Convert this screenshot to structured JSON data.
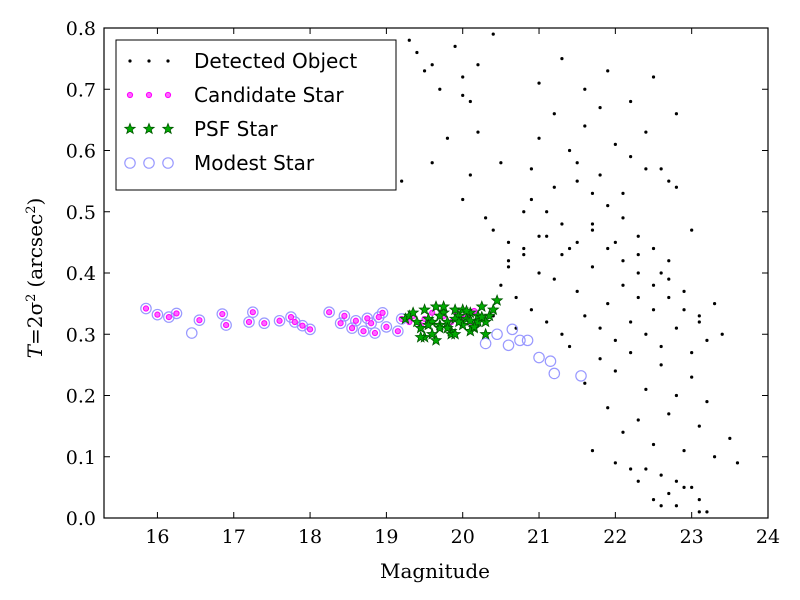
{
  "chart_data": {
    "type": "scatter",
    "xlabel": "Magnitude",
    "ylabel_prefix": "T",
    "ylabel_math": "=2σ",
    "ylabel_unit": "(arcsec",
    "ylabel_close": ")",
    "ylabel_sup": "2",
    "xlim": [
      15.3,
      24.0
    ],
    "ylim": [
      0.0,
      0.8
    ],
    "xticks": [
      "16",
      "17",
      "18",
      "19",
      "20",
      "21",
      "22",
      "23",
      "24"
    ],
    "yticks": [
      "0.0",
      "0.1",
      "0.2",
      "0.3",
      "0.4",
      "0.5",
      "0.6",
      "0.7",
      "0.8"
    ],
    "legend_position": "top-left",
    "grid": false,
    "colors": {
      "detected": "#000000",
      "candidate_edge": "#ff00ff",
      "candidate_fill": "#ff66ff",
      "psf_fill": "#00aa00",
      "psf_edge": "#005500",
      "modest_edge": "#9999ff"
    },
    "series": [
      {
        "name": "Detected Object",
        "marker": "dot",
        "x": [
          19.3,
          19.4,
          19.5,
          19.7,
          19.9,
          20.0,
          20.1,
          20.2,
          20.4,
          19.2,
          19.6,
          20.0,
          20.3,
          20.6,
          20.8,
          21.0,
          21.2,
          21.4,
          21.6,
          21.8,
          22.0,
          22.2,
          22.4,
          22.6,
          22.8,
          19.8,
          20.1,
          20.4,
          20.6,
          20.9,
          21.1,
          21.3,
          21.5,
          21.7,
          21.9,
          22.1,
          22.3,
          22.5,
          22.7,
          23.0,
          20.5,
          20.7,
          21.0,
          21.2,
          21.5,
          21.7,
          21.9,
          22.1,
          22.3,
          22.5,
          22.7,
          22.9,
          23.1,
          23.3,
          20.4,
          20.7,
          20.9,
          21.1,
          21.3,
          21.6,
          21.8,
          22.0,
          22.2,
          22.4,
          22.6,
          22.8,
          23.0,
          23.2,
          20.6,
          20.8,
          21.0,
          21.3,
          21.5,
          21.7,
          21.9,
          22.1,
          22.3,
          22.5,
          22.7,
          22.9,
          23.1,
          23.4,
          21.4,
          21.8,
          22.2,
          22.6,
          23.0,
          21.6,
          22.0,
          22.4,
          22.8,
          23.2,
          21.9,
          22.3,
          22.7,
          23.1,
          23.5,
          22.1,
          22.5,
          22.9,
          23.3,
          23.6,
          21.7,
          22.2,
          22.6,
          22.8,
          23.0,
          22.0,
          22.4,
          22.7,
          23.1,
          22.3,
          22.6,
          22.9,
          23.2,
          22.5,
          22.8,
          23.1,
          19.6,
          20.0,
          20.2,
          20.5,
          21.0,
          21.3,
          21.6,
          21.9,
          22.2,
          22.5,
          22.8,
          20.9,
          21.2,
          21.5,
          21.8,
          22.1,
          22.4,
          22.7,
          20.8,
          21.1,
          21.4,
          21.7,
          22.0,
          22.3,
          22.6
        ],
        "y": [
          0.78,
          0.76,
          0.73,
          0.7,
          0.77,
          0.72,
          0.68,
          0.74,
          0.79,
          0.55,
          0.58,
          0.52,
          0.49,
          0.45,
          0.43,
          0.62,
          0.66,
          0.6,
          0.64,
          0.67,
          0.61,
          0.59,
          0.63,
          0.57,
          0.54,
          0.62,
          0.56,
          0.47,
          0.41,
          0.52,
          0.5,
          0.48,
          0.55,
          0.53,
          0.51,
          0.49,
          0.46,
          0.44,
          0.42,
          0.47,
          0.38,
          0.36,
          0.4,
          0.39,
          0.37,
          0.41,
          0.35,
          0.38,
          0.36,
          0.34,
          0.39,
          0.37,
          0.33,
          0.35,
          0.33,
          0.31,
          0.34,
          0.32,
          0.3,
          0.33,
          0.31,
          0.29,
          0.32,
          0.3,
          0.28,
          0.31,
          0.27,
          0.29,
          0.42,
          0.44,
          0.46,
          0.43,
          0.45,
          0.47,
          0.44,
          0.42,
          0.4,
          0.38,
          0.36,
          0.34,
          0.32,
          0.3,
          0.28,
          0.26,
          0.27,
          0.25,
          0.23,
          0.22,
          0.24,
          0.21,
          0.2,
          0.19,
          0.18,
          0.16,
          0.17,
          0.15,
          0.13,
          0.14,
          0.12,
          0.11,
          0.1,
          0.09,
          0.11,
          0.08,
          0.07,
          0.06,
          0.05,
          0.09,
          0.08,
          0.04,
          0.03,
          0.06,
          0.02,
          0.05,
          0.01,
          0.03,
          0.02,
          0.01,
          0.74,
          0.69,
          0.63,
          0.58,
          0.71,
          0.75,
          0.7,
          0.73,
          0.68,
          0.72,
          0.66,
          0.57,
          0.54,
          0.58,
          0.56,
          0.53,
          0.57,
          0.55,
          0.5,
          0.46,
          0.44,
          0.48,
          0.45,
          0.43,
          0.4
        ]
      },
      {
        "name": "Candidate Star",
        "marker": "circle-small",
        "x": [
          15.85,
          16.0,
          16.15,
          16.25,
          16.55,
          16.85,
          16.9,
          17.2,
          17.25,
          17.4,
          17.6,
          17.75,
          17.8,
          17.9,
          18.0,
          18.25,
          18.4,
          18.45,
          18.55,
          18.6,
          18.7,
          18.75,
          18.8,
          18.85,
          18.9,
          18.95,
          19.0,
          19.15,
          19.2,
          19.3,
          19.35,
          19.45,
          19.5,
          19.6,
          19.75,
          19.85,
          19.9,
          20.0,
          20.05,
          20.1,
          20.15
        ],
        "y": [
          0.342,
          0.332,
          0.328,
          0.334,
          0.323,
          0.333,
          0.315,
          0.32,
          0.336,
          0.318,
          0.322,
          0.328,
          0.32,
          0.314,
          0.308,
          0.336,
          0.318,
          0.33,
          0.31,
          0.322,
          0.305,
          0.326,
          0.318,
          0.302,
          0.328,
          0.335,
          0.312,
          0.305,
          0.325,
          0.32,
          0.33,
          0.315,
          0.325,
          0.335,
          0.33,
          0.32,
          0.338,
          0.325,
          0.33,
          0.318,
          0.338
        ]
      },
      {
        "name": "PSF Star",
        "marker": "star",
        "x": [
          19.25,
          19.3,
          19.35,
          19.4,
          19.45,
          19.5,
          19.55,
          19.6,
          19.65,
          19.7,
          19.75,
          19.8,
          19.85,
          19.9,
          19.95,
          20.0,
          20.05,
          20.1,
          20.15,
          20.2,
          20.25,
          20.3,
          20.35,
          20.4,
          20.45,
          19.5,
          19.6,
          19.7,
          19.8,
          19.9,
          20.0,
          20.1,
          20.2,
          20.3,
          19.55,
          19.65,
          19.75,
          19.85,
          19.95,
          20.05,
          20.15,
          20.25,
          19.45,
          19.7,
          19.9,
          20.1
        ],
        "y": [
          0.325,
          0.33,
          0.335,
          0.32,
          0.31,
          0.34,
          0.325,
          0.3,
          0.345,
          0.315,
          0.335,
          0.32,
          0.305,
          0.34,
          0.33,
          0.315,
          0.325,
          0.335,
          0.31,
          0.32,
          0.345,
          0.3,
          0.33,
          0.34,
          0.355,
          0.295,
          0.32,
          0.33,
          0.31,
          0.325,
          0.34,
          0.305,
          0.33,
          0.32,
          0.315,
          0.29,
          0.345,
          0.3,
          0.32,
          0.338,
          0.312,
          0.328,
          0.295,
          0.31,
          0.3,
          0.322
        ]
      },
      {
        "name": "Modest Star",
        "marker": "circle-open",
        "x": [
          15.85,
          16.0,
          16.15,
          16.25,
          16.45,
          16.55,
          16.85,
          16.9,
          17.2,
          17.25,
          17.4,
          17.6,
          17.75,
          17.8,
          17.9,
          18.0,
          18.25,
          18.4,
          18.45,
          18.55,
          18.6,
          18.7,
          18.75,
          18.8,
          18.85,
          18.9,
          18.95,
          19.0,
          19.15,
          19.2,
          20.3,
          20.45,
          20.6,
          20.65,
          20.75,
          20.85,
          21.0,
          21.15,
          21.2,
          21.55
        ],
        "y": [
          0.342,
          0.332,
          0.328,
          0.334,
          0.302,
          0.323,
          0.333,
          0.315,
          0.32,
          0.336,
          0.318,
          0.322,
          0.328,
          0.32,
          0.314,
          0.308,
          0.336,
          0.318,
          0.33,
          0.31,
          0.322,
          0.305,
          0.326,
          0.318,
          0.302,
          0.328,
          0.335,
          0.312,
          0.305,
          0.325,
          0.285,
          0.3,
          0.282,
          0.308,
          0.29,
          0.29,
          0.262,
          0.256,
          0.236,
          0.232
        ]
      }
    ]
  }
}
